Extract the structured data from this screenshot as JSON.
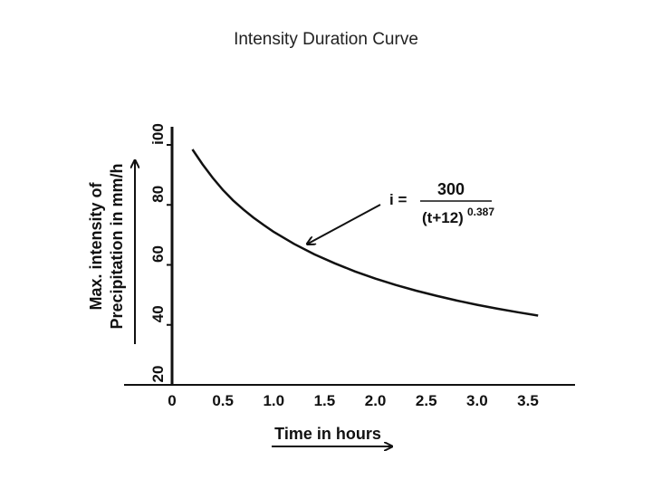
{
  "slide": {
    "title": "Intensity Duration Curve"
  },
  "chart_data": {
    "type": "line",
    "title": "Intensity Duration Curve",
    "xlabel": "Time in hours",
    "ylabel_line1": "Max. intensity of",
    "ylabel_line2": "Precipitation in mm/h",
    "xlim": [
      0,
      3.7
    ],
    "ylim": [
      20,
      100
    ],
    "x_ticks": [
      "0",
      "0.5",
      "1.0",
      "1.5",
      "2.0",
      "2.5",
      "3.0",
      "3.5"
    ],
    "y_ticks": [
      "20",
      "40",
      "60",
      "80",
      "i00"
    ],
    "series": [
      {
        "x": [
          0.2,
          0.3,
          0.4,
          0.5,
          0.6,
          0.7,
          0.8,
          0.9,
          1.0,
          1.2,
          1.4,
          1.6,
          1.8,
          2.0,
          2.2,
          2.4,
          2.6,
          2.8,
          3.0,
          3.2,
          3.4,
          3.6
        ],
        "y": [
          98.5,
          93.5,
          89.0,
          85.0,
          81.5,
          78.5,
          75.8,
          73.3,
          71.0,
          67.0,
          63.5,
          60.5,
          57.8,
          55.4,
          53.3,
          51.4,
          49.7,
          48.1,
          46.7,
          45.4,
          44.2,
          43.1
        ]
      }
    ],
    "annotation": {
      "prefix": "i =",
      "numerator": "300",
      "denominator": "(t+12)",
      "exponent": "0.387",
      "arrow_target_x": 1.3
    },
    "grid": false
  }
}
